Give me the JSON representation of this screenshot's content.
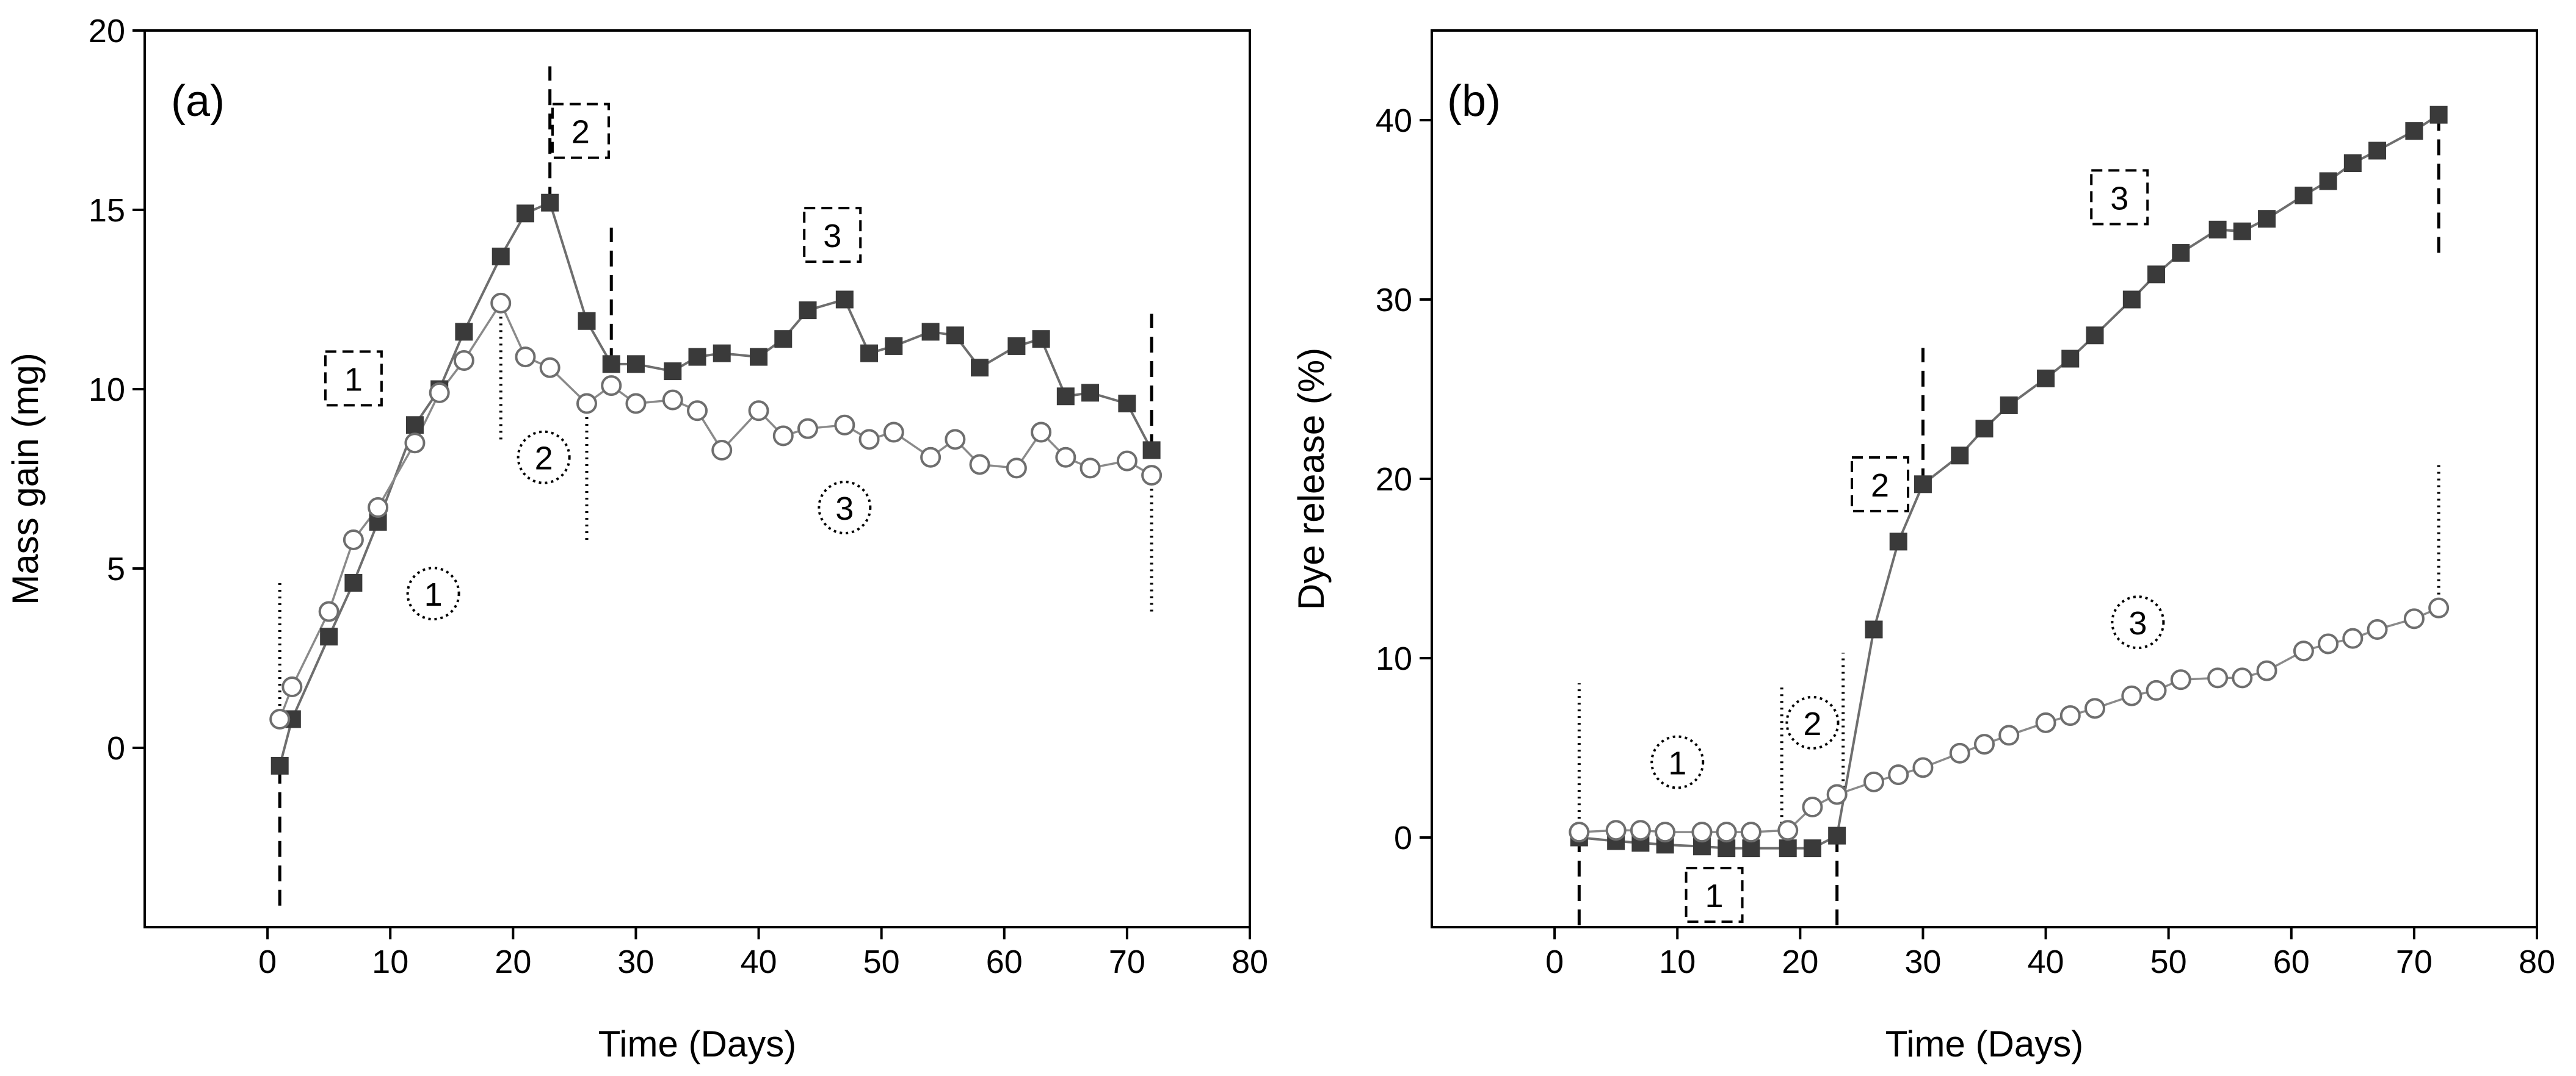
{
  "chart_data": [
    {
      "type": "line",
      "panel_label": "(a)",
      "title": "",
      "xlabel": "Time (Days)",
      "ylabel": "Mass gain (mg)",
      "xlim": [
        -10,
        80
      ],
      "ylim": [
        -5,
        20
      ],
      "xticks": [
        0,
        10,
        20,
        30,
        40,
        50,
        60,
        70,
        80
      ],
      "yticks": [
        0,
        5,
        10,
        15,
        20
      ],
      "series": [
        {
          "name": "filled squares",
          "marker": "square",
          "x": [
            1,
            2,
            5,
            7,
            9,
            12,
            14,
            16,
            19,
            21,
            23,
            26,
            28,
            30,
            33,
            35,
            37,
            40,
            42,
            44,
            47,
            49,
            51,
            54,
            56,
            58,
            61,
            63,
            65,
            67,
            70,
            72
          ],
          "y": [
            -0.5,
            0.8,
            3.1,
            4.6,
            6.3,
            9.0,
            10.0,
            11.6,
            13.7,
            14.9,
            15.2,
            11.9,
            10.7,
            10.7,
            10.5,
            10.9,
            11.0,
            10.9,
            11.4,
            12.2,
            12.5,
            11.0,
            11.2,
            11.6,
            11.5,
            10.6,
            11.2,
            11.4,
            9.8,
            9.9,
            9.6,
            8.3
          ]
        },
        {
          "name": "open circles",
          "marker": "circle",
          "x": [
            1,
            2,
            5,
            7,
            9,
            12,
            14,
            16,
            19,
            21,
            23,
            26,
            28,
            30,
            33,
            35,
            37,
            40,
            42,
            44,
            47,
            49,
            51,
            54,
            56,
            58,
            61,
            63,
            65,
            67,
            70,
            72
          ],
          "y": [
            0.8,
            1.7,
            3.8,
            5.8,
            6.7,
            8.5,
            9.9,
            10.8,
            12.4,
            10.9,
            10.6,
            9.6,
            10.1,
            9.6,
            9.7,
            9.4,
            8.3,
            9.4,
            8.7,
            8.9,
            9.0,
            8.6,
            8.8,
            8.1,
            8.6,
            7.9,
            7.8,
            8.8,
            8.1,
            7.8,
            8.0,
            7.6
          ]
        }
      ],
      "phase_markers": [
        {
          "style": "dotted",
          "x": 1,
          "y0": 0.8,
          "y1": 4.6
        },
        {
          "style": "dotted",
          "x": 19,
          "y0": 8.6,
          "y1": 12.4
        },
        {
          "style": "dotted",
          "x": 26,
          "y0": 5.8,
          "y1": 9.6
        },
        {
          "style": "dotted",
          "x": 72,
          "y0": 3.8,
          "y1": 7.6
        },
        {
          "style": "dashed",
          "x": 1,
          "y0": -4.4,
          "y1": -0.5
        },
        {
          "style": "dashed",
          "x": 23,
          "y0": 15.2,
          "y1": 19.0
        },
        {
          "style": "dashed",
          "x": 28,
          "y0": 10.7,
          "y1": 14.5
        },
        {
          "style": "dashed",
          "x": 72,
          "y0": 8.3,
          "y1": 12.1
        }
      ],
      "phase_labels": [
        {
          "style": "box",
          "text": "1",
          "x": 7,
          "y": 10.3
        },
        {
          "style": "box",
          "text": "2",
          "x": 25.5,
          "y": 17.2
        },
        {
          "style": "box",
          "text": "3",
          "x": 46,
          "y": 14.3
        },
        {
          "style": "circle",
          "text": "1",
          "x": 13.5,
          "y": 4.3
        },
        {
          "style": "circle",
          "text": "2",
          "x": 22.5,
          "y": 8.1
        },
        {
          "style": "circle",
          "text": "3",
          "x": 47,
          "y": 6.7
        }
      ]
    },
    {
      "type": "line",
      "panel_label": "(b)",
      "title": "",
      "xlabel": "Time (Days)",
      "ylabel": "Dye release (%)",
      "xlim": [
        -10,
        80
      ],
      "ylim": [
        -5,
        45
      ],
      "xticks": [
        0,
        10,
        20,
        30,
        40,
        50,
        60,
        70,
        80
      ],
      "yticks": [
        0,
        10,
        20,
        30,
        40
      ],
      "series": [
        {
          "name": "filled squares",
          "marker": "square",
          "x": [
            2,
            5,
            7,
            9,
            12,
            14,
            16,
            19,
            21,
            23,
            26,
            28,
            30,
            33,
            35,
            37,
            40,
            42,
            44,
            47,
            49,
            51,
            54,
            56,
            58,
            61,
            63,
            65,
            67,
            70,
            72
          ],
          "y": [
            0.0,
            -0.2,
            -0.3,
            -0.4,
            -0.5,
            -0.6,
            -0.6,
            -0.6,
            -0.6,
            0.1,
            11.6,
            16.5,
            19.7,
            21.3,
            22.8,
            24.1,
            25.6,
            26.7,
            28.0,
            30.0,
            31.4,
            32.6,
            33.9,
            33.8,
            34.5,
            35.8,
            36.6,
            37.6,
            38.3,
            39.4,
            40.3
          ]
        },
        {
          "name": "open circles",
          "marker": "circle",
          "x": [
            2,
            5,
            7,
            9,
            12,
            14,
            16,
            19,
            21,
            23,
            26,
            28,
            30,
            33,
            35,
            37,
            40,
            42,
            44,
            47,
            49,
            51,
            54,
            56,
            58,
            61,
            63,
            65,
            67,
            70,
            72
          ],
          "y": [
            0.3,
            0.4,
            0.4,
            0.3,
            0.3,
            0.3,
            0.3,
            0.4,
            1.7,
            2.4,
            3.1,
            3.5,
            3.9,
            4.7,
            5.2,
            5.7,
            6.4,
            6.8,
            7.2,
            7.9,
            8.2,
            8.8,
            8.9,
            8.9,
            9.3,
            10.4,
            10.8,
            11.1,
            11.6,
            12.2,
            12.8
          ]
        }
      ],
      "phase_markers": [
        {
          "style": "dotted",
          "x": 2,
          "y0": 0.3,
          "y1": 8.6
        },
        {
          "style": "dotted",
          "x": 18.5,
          "y0": 0.4,
          "y1": 8.6
        },
        {
          "style": "dotted",
          "x": 23.5,
          "y0": 2.4,
          "y1": 10.3
        },
        {
          "style": "dotted",
          "x": 72,
          "y0": 12.8,
          "y1": 21.0
        },
        {
          "style": "dashed",
          "x": 2,
          "y0": -4.9,
          "y1": 0.0
        },
        {
          "style": "dashed",
          "x": 23,
          "y0": -4.9,
          "y1": 0.1
        },
        {
          "style": "dashed",
          "x": 30,
          "y0": 19.7,
          "y1": 27.3
        },
        {
          "style": "dashed",
          "x": 72,
          "y0": 32.6,
          "y1": 40.3
        }
      ],
      "phase_labels": [
        {
          "style": "box",
          "text": "1",
          "x": 13,
          "y": -3.2
        },
        {
          "style": "box",
          "text": "2",
          "x": 26.5,
          "y": 19.7
        },
        {
          "style": "box",
          "text": "3",
          "x": 46,
          "y": 35.7
        },
        {
          "style": "circle",
          "text": "1",
          "x": 10,
          "y": 4.2
        },
        {
          "style": "circle",
          "text": "2",
          "x": 21,
          "y": 6.4
        },
        {
          "style": "circle",
          "text": "3",
          "x": 47.5,
          "y": 12.0
        }
      ]
    }
  ]
}
